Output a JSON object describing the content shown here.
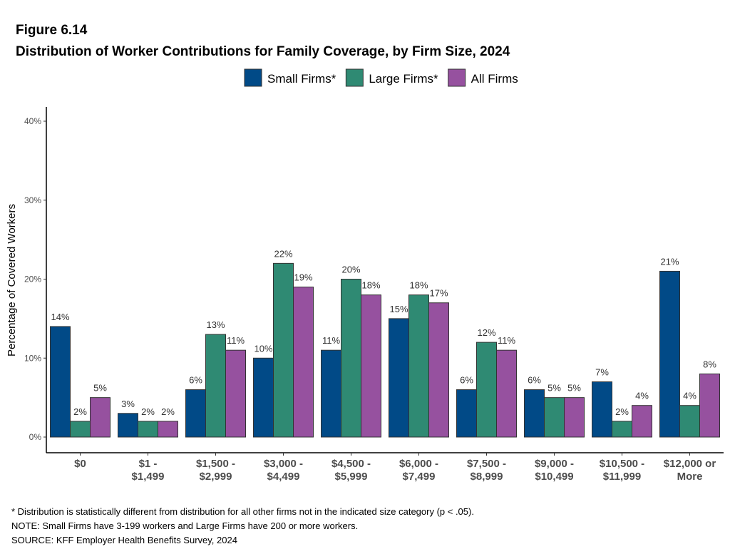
{
  "chart_data": {
    "type": "bar",
    "title": "Figure 6.14",
    "subtitle": "Distribution of Worker Contributions for Family Coverage, by Firm Size, 2024",
    "xlabel": "",
    "ylabel": "Percentage of Covered Workers",
    "ylim": [
      0,
      40
    ],
    "yticks": [
      "0%",
      "10%",
      "20%",
      "30%",
      "40%"
    ],
    "grid": false,
    "legend": "top-center",
    "categories": [
      [
        "$0"
      ],
      [
        "$1 -",
        "$1,499"
      ],
      [
        "$1,500 -",
        "$2,999"
      ],
      [
        "$3,000 -",
        "$4,499"
      ],
      [
        "$4,500 -",
        "$5,999"
      ],
      [
        "$6,000 -",
        "$7,499"
      ],
      [
        "$7,500 -",
        "$8,999"
      ],
      [
        "$9,000 -",
        "$10,499"
      ],
      [
        "$10,500 -",
        "$11,999"
      ],
      [
        "$12,000 or",
        "More"
      ]
    ],
    "series": [
      {
        "name": "Small Firms*",
        "color": "#014A87",
        "values": [
          14,
          3,
          6,
          10,
          11,
          15,
          6,
          6,
          7,
          21
        ]
      },
      {
        "name": "Large Firms*",
        "color": "#2F8A73",
        "values": [
          2,
          2,
          13,
          22,
          20,
          18,
          12,
          5,
          2,
          4
        ]
      },
      {
        "name": "All Firms",
        "color": "#96519F",
        "values": [
          5,
          2,
          11,
          19,
          18,
          17,
          11,
          5,
          4,
          8
        ]
      }
    ]
  },
  "notes": [
    "* Distribution is statistically different from distribution for all other firms not in the indicated size category (p < .05).",
    "NOTE: Small Firms have 3-199 workers and Large Firms have 200 or more workers.",
    "SOURCE: KFF Employer Health Benefits Survey, 2024"
  ]
}
